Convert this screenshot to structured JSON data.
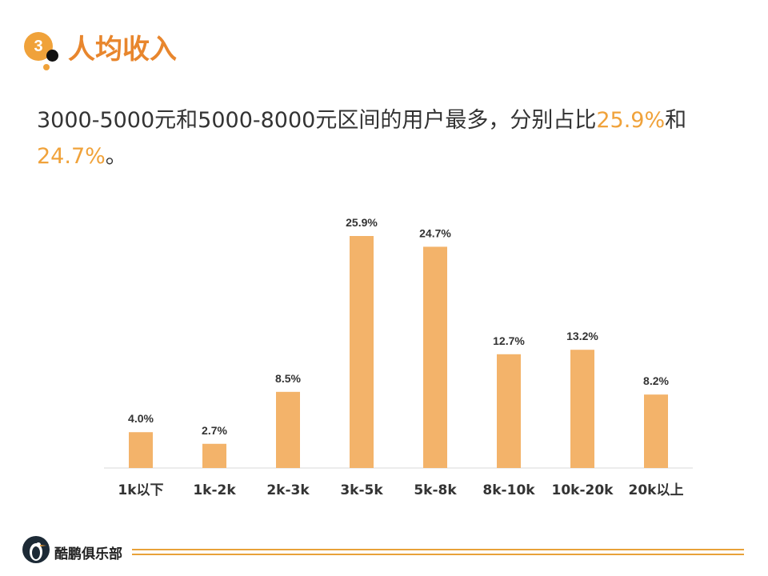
{
  "header": {
    "section_number": "3",
    "title": "人均收入"
  },
  "summary": {
    "text_part1": "3000-5000元和5000-8000元区间的用户最多，分别占比",
    "highlight1": "25.9%",
    "text_part2": "和",
    "highlight2": "24.7%",
    "text_part3": "。"
  },
  "chart_data": {
    "type": "bar",
    "categories": [
      "1k以下",
      "1k-2k",
      "2k-3k",
      "3k-5k",
      "5k-8k",
      "8k-10k",
      "10k-20k",
      "20k以上"
    ],
    "values": [
      4.0,
      2.7,
      8.5,
      25.9,
      24.7,
      12.7,
      13.2,
      8.2
    ],
    "value_labels": [
      "4.0%",
      "2.7%",
      "8.5%",
      "25.9%",
      "24.7%",
      "12.7%",
      "13.2%",
      "8.2%"
    ],
    "unit": "%",
    "ylim": [
      0,
      25.9
    ],
    "grid": false,
    "legend": "none",
    "bar_color": "#F3B36A"
  },
  "footer": {
    "brand": "酷鹏俱乐部",
    "logo_icon": "penguin-logo-icon",
    "accent_color": "#E8A23A"
  },
  "colors": {
    "accent": "#F0A23A",
    "title": "#E8862D",
    "text": "#333333"
  }
}
